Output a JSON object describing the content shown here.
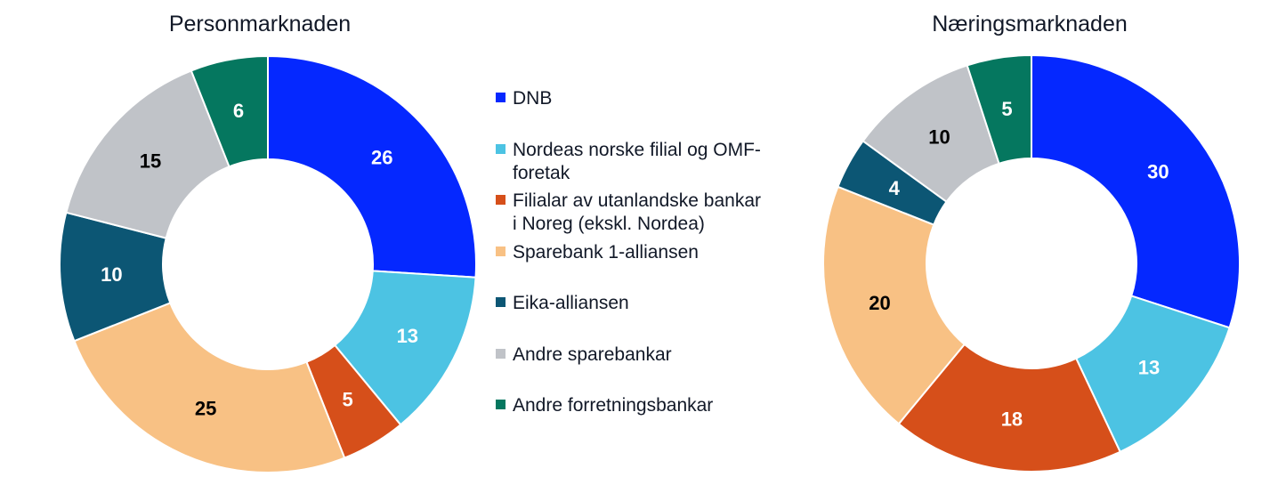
{
  "colors": {
    "DNB": "#0528ff",
    "Nordea": "#4cc3e3",
    "Filialar": "#d64f1a",
    "Sparebank1": "#f8c184",
    "Eika": "#0c5674",
    "AndreSparebankar": "#c0c3c8",
    "AndreForretningsbankar": "#05775f"
  },
  "legend": [
    {
      "key": "DNB",
      "lines": [
        "DNB"
      ]
    },
    {
      "key": "Nordea",
      "lines": [
        "Nordeas norske filial og OMF-",
        "foretak"
      ]
    },
    {
      "key": "Filialar",
      "lines": [
        "Filialar av utanlandske bankar",
        "i Noreg (ekskl. Nordea)"
      ]
    },
    {
      "key": "Sparebank1",
      "lines": [
        "Sparebank 1-alliansen"
      ]
    },
    {
      "key": "Eika",
      "lines": [
        "Eika-alliansen"
      ]
    },
    {
      "key": "AndreSparebankar",
      "lines": [
        "Andre sparebankar"
      ]
    },
    {
      "key": "AndreForretningsbankar",
      "lines": [
        "Andre forretningsbankar"
      ]
    }
  ],
  "chart_data": [
    {
      "type": "pie",
      "donut": true,
      "title": "Personmarknaden",
      "categories": [
        "DNB",
        "Nordeas norske filial og OMF-foretak",
        "Filialar av utanlandske bankar i Noreg (ekskl. Nordea)",
        "Sparebank 1-alliansen",
        "Eika-alliansen",
        "Andre sparebankar",
        "Andre forretningsbankar"
      ],
      "values": [
        26,
        13,
        5,
        25,
        10,
        15,
        6
      ],
      "keys": [
        "DNB",
        "Nordea",
        "Filialar",
        "Sparebank1",
        "Eika",
        "AndreSparebankar",
        "AndreForretningsbankar"
      ],
      "label_colors": [
        "#ffffff",
        "#ffffff",
        "#ffffff",
        "#000000",
        "#ffffff",
        "#000000",
        "#ffffff"
      ]
    },
    {
      "type": "pie",
      "donut": true,
      "title": "Næringsmarknaden",
      "categories": [
        "DNB",
        "Nordeas norske filial og OMF-foretak",
        "Filialar av utanlandske bankar i Noreg (ekskl. Nordea)",
        "Sparebank 1-alliansen",
        "Eika-alliansen",
        "Andre sparebankar",
        "Andre forretningsbankar"
      ],
      "values": [
        30,
        13,
        18,
        20,
        4,
        10,
        5
      ],
      "keys": [
        "DNB",
        "Nordea",
        "Filialar",
        "Sparebank1",
        "Eika",
        "AndreSparebankar",
        "AndreForretningsbankar"
      ],
      "label_colors": [
        "#ffffff",
        "#ffffff",
        "#ffffff",
        "#000000",
        "#ffffff",
        "#000000",
        "#ffffff"
      ]
    }
  ]
}
